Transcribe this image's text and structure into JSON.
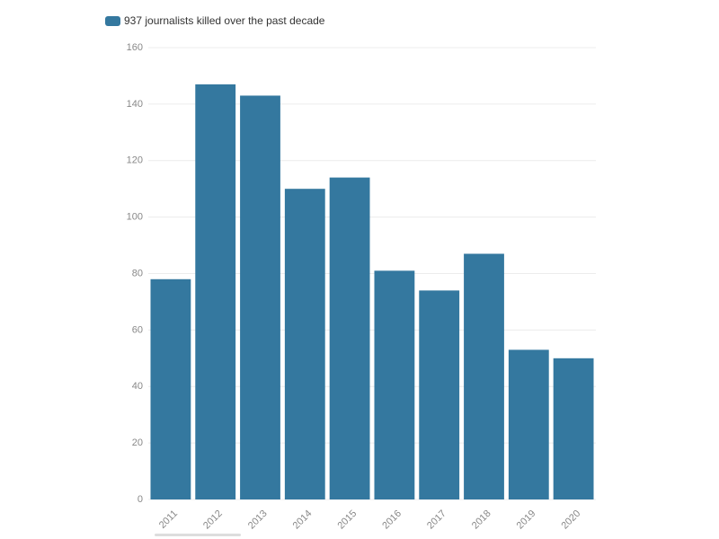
{
  "chart_data": {
    "type": "bar",
    "categories": [
      "2011",
      "2012",
      "2013",
      "2014",
      "2015",
      "2016",
      "2017",
      "2018",
      "2019",
      "2020"
    ],
    "series": [
      {
        "name": "937 journalists killed over the past decade",
        "color": "#34789f",
        "values": [
          78,
          147,
          143,
          110,
          114,
          81,
          74,
          87,
          53,
          50
        ]
      }
    ],
    "ylim": [
      0,
      160
    ],
    "yticks": [
      0,
      20,
      40,
      60,
      80,
      100,
      120,
      140,
      160
    ],
    "grid": true
  }
}
